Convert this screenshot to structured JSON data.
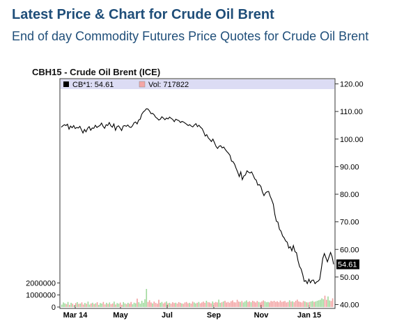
{
  "header": {
    "title": "Latest Price & Chart for Crude Oil Brent",
    "subtitle": "End of day Commodity Futures Price Quotes for Crude Oil Brent"
  },
  "chart_data": {
    "type": "line",
    "title": "CBH15 - Crude Oil Brent (ICE)",
    "legend": [
      {
        "label": "CB*1: 54.61",
        "color": "#000000"
      },
      {
        "label": "Vol: 717822",
        "color": "#f4a6a6"
      }
    ],
    "x_ticks": [
      "Mar 14",
      "May",
      "Jul",
      "Sep",
      "Nov",
      "Jan 15"
    ],
    "y_ticks": [
      "120.00",
      "110.00",
      "100.00",
      "90.00",
      "80.00",
      "70.00",
      "60.00",
      "50.00",
      "40.00"
    ],
    "ylim": [
      40,
      120
    ],
    "last_value_label": "54.61",
    "volume_ticks": [
      "2000000",
      "1000000",
      "0"
    ],
    "volume_ylim": [
      0,
      2600000
    ],
    "series": [
      {
        "values": [
          104.3,
          104.8,
          105.2,
          104.9,
          105.4,
          103.6,
          104.7,
          104.1,
          104.9,
          103.8,
          104.2,
          104.0,
          104.6,
          103.4,
          102.2,
          103.5,
          102.6,
          103.9,
          104.5,
          103.2,
          104.0,
          103.9,
          105.0,
          104.2,
          104.6,
          104.9,
          105.8,
          104.6,
          103.9,
          105.2,
          104.9,
          106.0,
          104.8,
          104.3,
          105.5,
          103.2,
          104.5,
          104.8,
          104.0,
          103.1,
          104.7,
          104.9,
          104.6,
          105.1,
          104.4,
          104.2,
          104.8,
          105.9,
          106.2,
          105.5,
          106.9,
          107.2,
          109.0,
          109.8,
          110.3,
          111.0,
          110.9,
          110.2,
          109.2,
          109.3,
          108.8,
          107.9,
          107.5,
          106.9,
          107.2,
          108.1,
          107.6,
          107.0,
          107.6,
          107.3,
          108.0,
          107.5,
          107.1,
          106.3,
          107.2,
          106.9,
          106.7,
          106.0,
          106.4,
          106.2,
          105.8,
          105.4,
          104.9,
          105.2,
          104.7,
          104.4,
          105.1,
          105.6,
          104.5,
          105.0,
          104.3,
          103.8,
          102.6,
          101.1,
          101.6,
          100.4,
          99.8,
          99.1,
          100.0,
          98.7,
          97.3,
          96.6,
          97.4,
          97.6,
          96.8,
          97.1,
          96.2,
          95.5,
          94.9,
          94.1,
          92.0,
          91.8,
          90.9,
          89.4,
          88.0,
          86.4,
          88.1,
          85.3,
          86.6,
          87.0,
          88.5,
          88.0,
          87.7,
          88.1,
          86.9,
          85.6,
          85.1,
          83.3,
          83.5,
          82.8,
          80.8,
          79.5,
          80.5,
          80.9,
          81.0,
          79.3,
          78.0,
          76.4,
          72.7,
          70.2,
          69.9,
          67.3,
          66.6,
          64.9,
          64.2,
          63.1,
          62.6,
          60.5,
          61.0,
          59.5,
          61.4,
          59.2,
          58.8,
          55.9,
          53.8,
          52.9,
          50.9,
          48.4,
          48.7,
          47.6,
          49.2,
          47.9,
          48.8,
          48.9,
          47.6,
          48.2,
          48.5,
          49.1,
          52.8,
          56.7,
          58.5,
          57.0,
          55.5,
          57.2,
          58.9,
          57.4,
          54.6
        ]
      }
    ],
    "volume": [
      200000,
      380000,
      300000,
      250000,
      420000,
      180000,
      350000,
      280000,
      150000,
      330000,
      410000,
      260000,
      290000,
      390000,
      210000,
      340000,
      270000,
      450000,
      200000,
      300000,
      360000,
      250000,
      310000,
      400000,
      180000,
      330000,
      290000,
      420000,
      220000,
      350000,
      260000,
      380000,
      240000,
      300000,
      450000,
      210000,
      330000,
      280000,
      370000,
      190000,
      410000,
      300000,
      250000,
      350000,
      280000,
      420000,
      230000,
      360000,
      310000,
      700000,
      400000,
      280000,
      520000,
      350000,
      650000,
      1500000,
      420000,
      560000,
      380000,
      300000,
      450000,
      340000,
      280000,
      600000,
      350000,
      420000,
      300000,
      380000,
      460000,
      310000,
      350000,
      280000,
      400000,
      330000,
      360000,
      290000,
      410000,
      350000,
      300000,
      270000,
      380000,
      420000,
      310000,
      350000,
      290000,
      450000,
      380000,
      300000,
      350000,
      420000,
      310000,
      380000,
      450000,
      350000,
      520000,
      400000,
      380000,
      300000,
      460000,
      350000,
      420000,
      380000,
      610000,
      350000,
      400000,
      460000,
      520000,
      380000,
      420000,
      360000,
      480000,
      550000,
      400000,
      380000,
      600000,
      450000,
      420000,
      500000,
      380000,
      460000,
      550000,
      420000,
      480000,
      400000,
      520000,
      460000,
      380000,
      500000,
      420000,
      380000,
      460000,
      550000,
      480000,
      400000,
      420000,
      380000,
      500000,
      460000,
      520000,
      430000,
      480000,
      400000,
      540000,
      420000,
      460000,
      500000,
      380000,
      420000,
      560000,
      450000,
      480000,
      400000,
      520000,
      610000,
      460000,
      420000,
      380000,
      500000,
      460000,
      400000,
      380000,
      420000,
      460000,
      500000,
      430000,
      460000,
      520000,
      560000,
      600000,
      720000,
      650000,
      940000,
      600000,
      880000,
      550000,
      500000,
      720000
    ]
  }
}
